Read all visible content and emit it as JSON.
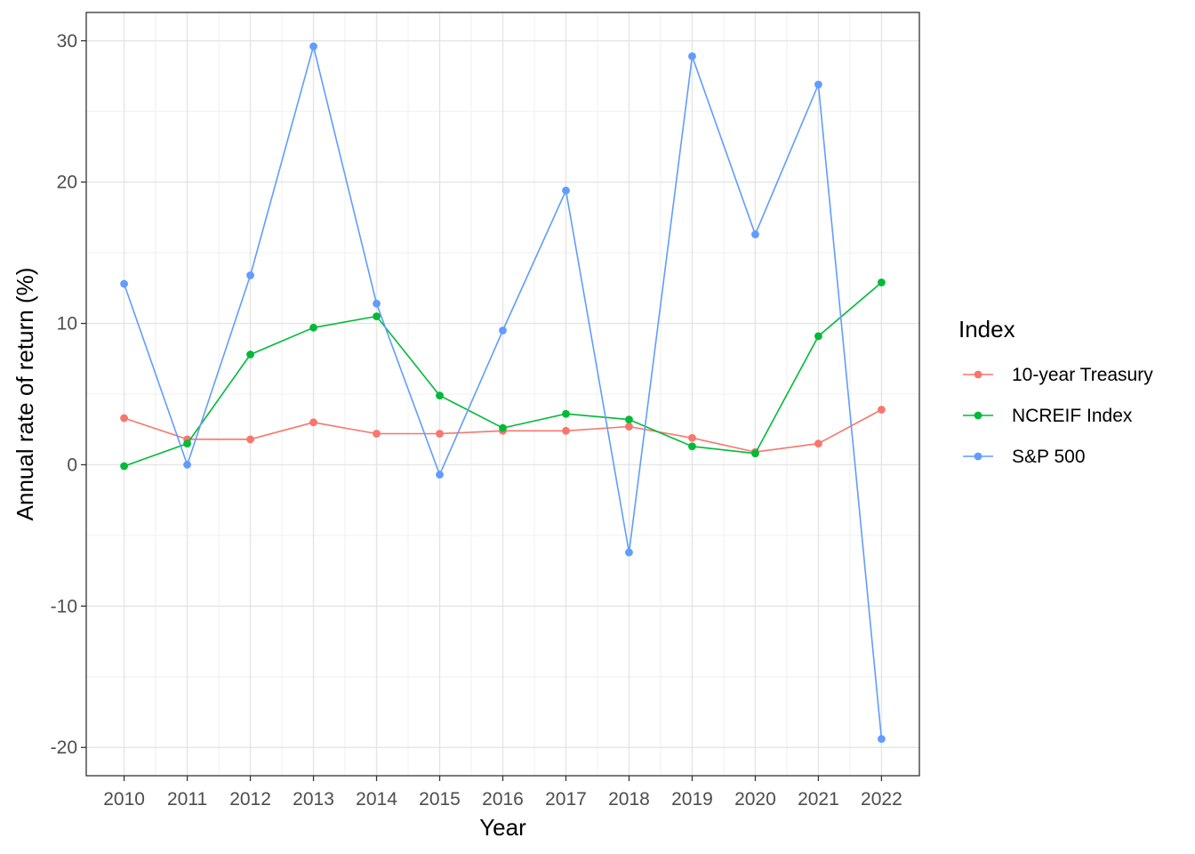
{
  "chart_data": {
    "type": "line",
    "xlabel": "Year",
    "ylabel": "Annual rate of return (%)",
    "x": [
      2010,
      2011,
      2012,
      2013,
      2014,
      2015,
      2016,
      2017,
      2018,
      2019,
      2020,
      2021,
      2022
    ],
    "ylim": [
      -22,
      32
    ],
    "y_ticks": [
      -20,
      -10,
      0,
      10,
      20,
      30
    ],
    "grid": true,
    "legend_title": "Index",
    "legend_position": "right",
    "series": [
      {
        "name": "10-year Treasury",
        "color": "#F8766D",
        "values": [
          3.3,
          1.8,
          1.8,
          3.0,
          2.2,
          2.2,
          2.4,
          2.4,
          2.7,
          1.9,
          0.9,
          1.5,
          3.9
        ]
      },
      {
        "name": "NCREIF Index",
        "color": "#00BA38",
        "values": [
          -0.1,
          1.5,
          7.8,
          9.7,
          10.5,
          4.9,
          2.6,
          3.6,
          3.2,
          1.3,
          0.8,
          9.1,
          12.9
        ]
      },
      {
        "name": "S&P 500",
        "color": "#619CFF",
        "values": [
          12.8,
          0.0,
          13.4,
          29.6,
          11.4,
          -0.7,
          9.5,
          19.4,
          -6.2,
          28.9,
          16.3,
          26.9,
          -19.4
        ]
      }
    ]
  }
}
